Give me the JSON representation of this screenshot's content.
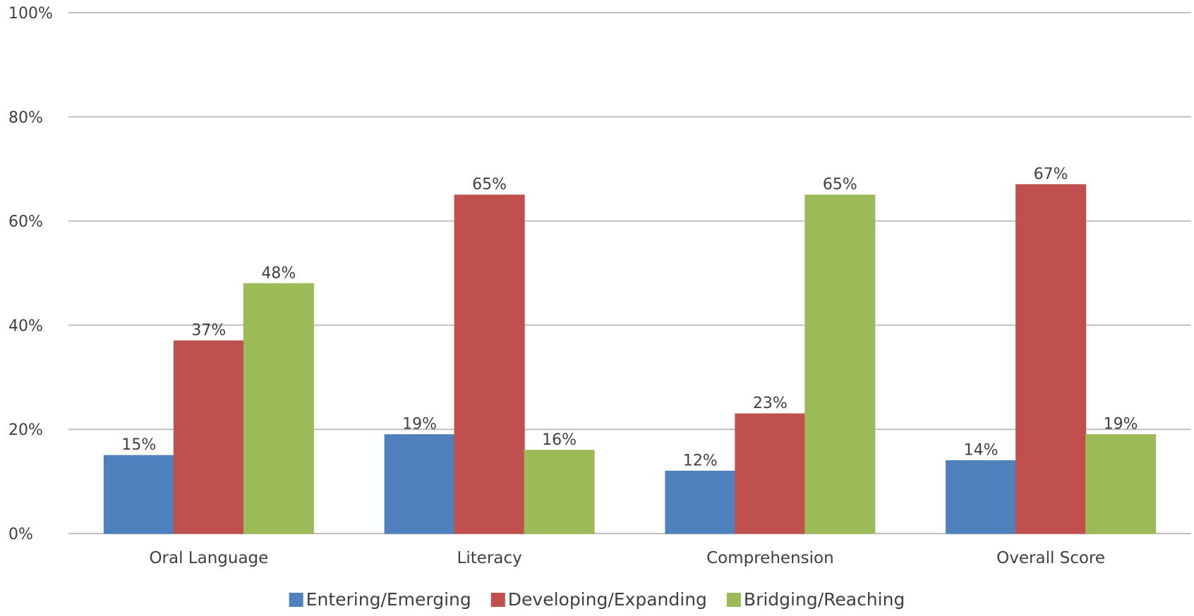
{
  "chart_data": {
    "type": "bar",
    "title": "",
    "xlabel": "",
    "ylabel": "",
    "ylim": [
      0,
      100
    ],
    "y_ticks": [
      "0%",
      "20%",
      "40%",
      "60%",
      "80%",
      "100%"
    ],
    "y_tick_values": [
      0,
      20,
      40,
      60,
      80,
      100
    ],
    "grid": true,
    "legend_position": "bottom",
    "categories": [
      "Oral Language",
      "Literacy",
      "Comprehension",
      "Overall Score"
    ],
    "series": [
      {
        "name": "Entering/Emerging",
        "color": "#4f81bd",
        "values": [
          15,
          19,
          12,
          14
        ],
        "labels": [
          "15%",
          "19%",
          "12%",
          "14%"
        ]
      },
      {
        "name": "Developing/Expanding",
        "color": "#c0504d",
        "values": [
          37,
          65,
          23,
          67
        ],
        "labels": [
          "37%",
          "65%",
          "23%",
          "67%"
        ]
      },
      {
        "name": "Bridging/Reaching",
        "color": "#9bbb59",
        "values": [
          48,
          16,
          65,
          19
        ],
        "labels": [
          "48%",
          "16%",
          "65%",
          "19%"
        ]
      }
    ]
  }
}
